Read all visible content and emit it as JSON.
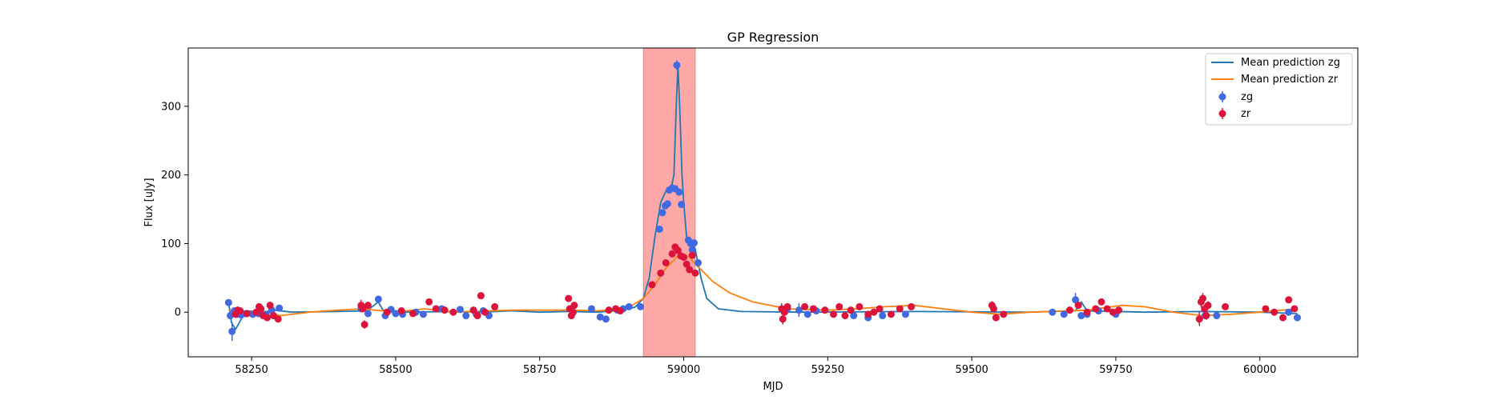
{
  "chart_data": {
    "type": "scatter",
    "title": "GP Regression",
    "xlabel": "MJD",
    "ylabel": "Flux [uJy]",
    "xlim": [
      58140,
      60170
    ],
    "ylim": [
      -65,
      385
    ],
    "x_ticks": [
      58250,
      58500,
      58750,
      59000,
      59250,
      59500,
      59750,
      60000
    ],
    "y_ticks": [
      0,
      100,
      200,
      300
    ],
    "grid": false,
    "legend_position": "top-right",
    "highlight_region": {
      "x_start": 58930,
      "x_end": 59020,
      "color": "#ffa8a8"
    },
    "series": [
      {
        "name": "Mean prediction zg",
        "kind": "line",
        "color": "#1f77b4",
        "x": [
          58210,
          58215,
          58222,
          58240,
          58270,
          58290,
          58320,
          58400,
          58450,
          58470,
          58478,
          58490,
          58520,
          58600,
          58650,
          58700,
          58750,
          58800,
          58850,
          58880,
          58900,
          58915,
          58930,
          58940,
          58950,
          58960,
          58970,
          58978,
          58983,
          58987,
          58990,
          58993,
          58997,
          59000,
          59005,
          59010,
          59015,
          59020,
          59030,
          59040,
          59060,
          59100,
          59200,
          59400,
          59600,
          59680,
          59690,
          59700,
          59800,
          59900,
          60000,
          60065
        ],
        "y": [
          15,
          -15,
          -25,
          2,
          0,
          3,
          0,
          1,
          2,
          15,
          3,
          2,
          0,
          1,
          0,
          2,
          0,
          1,
          0,
          2,
          5,
          7,
          20,
          50,
          110,
          160,
          178,
          180,
          200,
          300,
          360,
          300,
          200,
          160,
          110,
          100,
          100,
          92,
          50,
          20,
          5,
          1,
          0,
          1,
          0,
          2,
          15,
          2,
          0,
          1,
          0,
          -2
        ]
      },
      {
        "name": "Mean prediction zr",
        "kind": "line",
        "color": "#ff7f0e",
        "x": [
          58210,
          58240,
          58270,
          58300,
          58350,
          58400,
          58440,
          58500,
          58550,
          58600,
          58700,
          58800,
          58850,
          58900,
          58930,
          58950,
          58970,
          58990,
          59000,
          59010,
          59020,
          59035,
          59050,
          59080,
          59120,
          59180,
          59250,
          59300,
          59350,
          59400,
          59450,
          59500,
          59550,
          59600,
          59700,
          59760,
          59800,
          59850,
          59900,
          59950,
          60000,
          60065
        ],
        "y": [
          3,
          0,
          2,
          -5,
          0,
          3,
          5,
          0,
          5,
          0,
          3,
          3,
          2,
          5,
          20,
          40,
          65,
          82,
          85,
          80,
          70,
          58,
          45,
          28,
          15,
          5,
          3,
          5,
          8,
          10,
          5,
          0,
          -3,
          0,
          3,
          10,
          8,
          0,
          -5,
          -3,
          0,
          5
        ]
      },
      {
        "name": "zg",
        "kind": "points",
        "color": "#4169e1",
        "x": [
          58210,
          58213,
          58216,
          58220,
          58225,
          58232,
          58240,
          58252,
          58262,
          58275,
          58285,
          58298,
          58440,
          58452,
          58470,
          58482,
          58492,
          58500,
          58512,
          58535,
          58548,
          58580,
          58612,
          58622,
          58640,
          58652,
          58662,
          58840,
          58855,
          58865,
          58885,
          58895,
          58905,
          58925,
          58958,
          58963,
          58968,
          58972,
          58975,
          58980,
          58985,
          58988,
          58992,
          58996,
          59008,
          59012,
          59015,
          59018,
          59025,
          59180,
          59200,
          59215,
          59230,
          59295,
          59320,
          59345,
          59385,
          59640,
          59660,
          59680,
          59690,
          59700,
          59720,
          59750,
          59905,
          59925,
          60050,
          60065
        ],
        "y": [
          14,
          -5,
          -28,
          2,
          -3,
          -4,
          -2,
          -3,
          -2,
          -3,
          3,
          6,
          5,
          -2,
          19,
          -5,
          4,
          -2,
          -3,
          0,
          -3,
          5,
          4,
          -5,
          -3,
          2,
          -5,
          5,
          -7,
          -10,
          3,
          5,
          8,
          8,
          121,
          145,
          155,
          158,
          178,
          181,
          180,
          360,
          175,
          157,
          105,
          100,
          91,
          101,
          72,
          5,
          3,
          -3,
          2,
          -5,
          -8,
          -5,
          -3,
          0,
          -3,
          18,
          -5,
          -3,
          2,
          -3,
          -5,
          -5,
          0,
          -8
        ],
        "yerr": [
          4,
          3,
          14,
          4,
          3,
          3,
          3,
          3,
          3,
          3,
          3,
          3,
          4,
          3,
          5,
          3,
          3,
          3,
          3,
          3,
          3,
          3,
          3,
          3,
          3,
          3,
          3,
          3,
          3,
          3,
          3,
          3,
          3,
          3,
          5,
          5,
          5,
          5,
          5,
          5,
          5,
          7,
          5,
          5,
          5,
          5,
          5,
          5,
          5,
          3,
          10,
          3,
          3,
          5,
          5,
          3,
          3,
          3,
          3,
          10,
          3,
          3,
          3,
          3,
          3,
          3,
          3,
          3
        ]
      },
      {
        "name": "zr",
        "kind": "points",
        "color": "#dc143c",
        "x": [
          58222,
          58226,
          58230,
          58242,
          58258,
          58263,
          58266,
          58270,
          58277,
          58282,
          58288,
          58296,
          58440,
          58443,
          58446,
          58452,
          58485,
          58510,
          58530,
          58558,
          58570,
          58585,
          58600,
          58635,
          58642,
          58648,
          58655,
          58672,
          58800,
          58802,
          58805,
          58808,
          58810,
          58870,
          58882,
          58890,
          58945,
          58960,
          58969,
          58980,
          58985,
          58990,
          58995,
          59000,
          59005,
          59010,
          59015,
          59020,
          59170,
          59172,
          59175,
          59180,
          59210,
          59225,
          59245,
          59260,
          59270,
          59280,
          59290,
          59305,
          59320,
          59330,
          59340,
          59360,
          59375,
          59395,
          59535,
          59538,
          59542,
          59555,
          59670,
          59685,
          59700,
          59715,
          59725,
          59735,
          59745,
          59755,
          59895,
          59898,
          59901,
          59904,
          59907,
          59910,
          59940,
          60010,
          60025,
          60040,
          60050,
          60060
        ],
        "y": [
          -3,
          3,
          2,
          -2,
          0,
          8,
          5,
          -5,
          -8,
          10,
          -5,
          -10,
          10,
          5,
          -18,
          10,
          0,
          2,
          -2,
          15,
          5,
          3,
          0,
          3,
          -5,
          24,
          0,
          8,
          20,
          5,
          -5,
          0,
          10,
          3,
          5,
          2,
          40,
          57,
          72,
          85,
          95,
          90,
          82,
          80,
          70,
          62,
          83,
          57,
          5,
          -10,
          0,
          8,
          8,
          5,
          3,
          -3,
          8,
          -5,
          3,
          8,
          -3,
          0,
          5,
          -3,
          5,
          8,
          10,
          5,
          -8,
          -3,
          3,
          10,
          0,
          5,
          15,
          5,
          0,
          3,
          -10,
          15,
          20,
          5,
          -5,
          10,
          8,
          5,
          0,
          -8,
          18,
          5
        ],
        "yerr": [
          3,
          3,
          3,
          3,
          3,
          3,
          3,
          3,
          3,
          3,
          3,
          3,
          8,
          5,
          6,
          5,
          3,
          3,
          3,
          4,
          3,
          3,
          3,
          3,
          3,
          5,
          3,
          3,
          5,
          5,
          5,
          5,
          5,
          3,
          3,
          3,
          4,
          4,
          4,
          4,
          4,
          4,
          4,
          4,
          4,
          4,
          4,
          4,
          8,
          8,
          5,
          3,
          3,
          3,
          3,
          3,
          3,
          3,
          3,
          3,
          3,
          3,
          3,
          3,
          3,
          3,
          6,
          5,
          5,
          3,
          3,
          3,
          3,
          3,
          3,
          3,
          3,
          3,
          10,
          8,
          8,
          6,
          6,
          6,
          3,
          3,
          3,
          3,
          3,
          3
        ]
      }
    ]
  }
}
